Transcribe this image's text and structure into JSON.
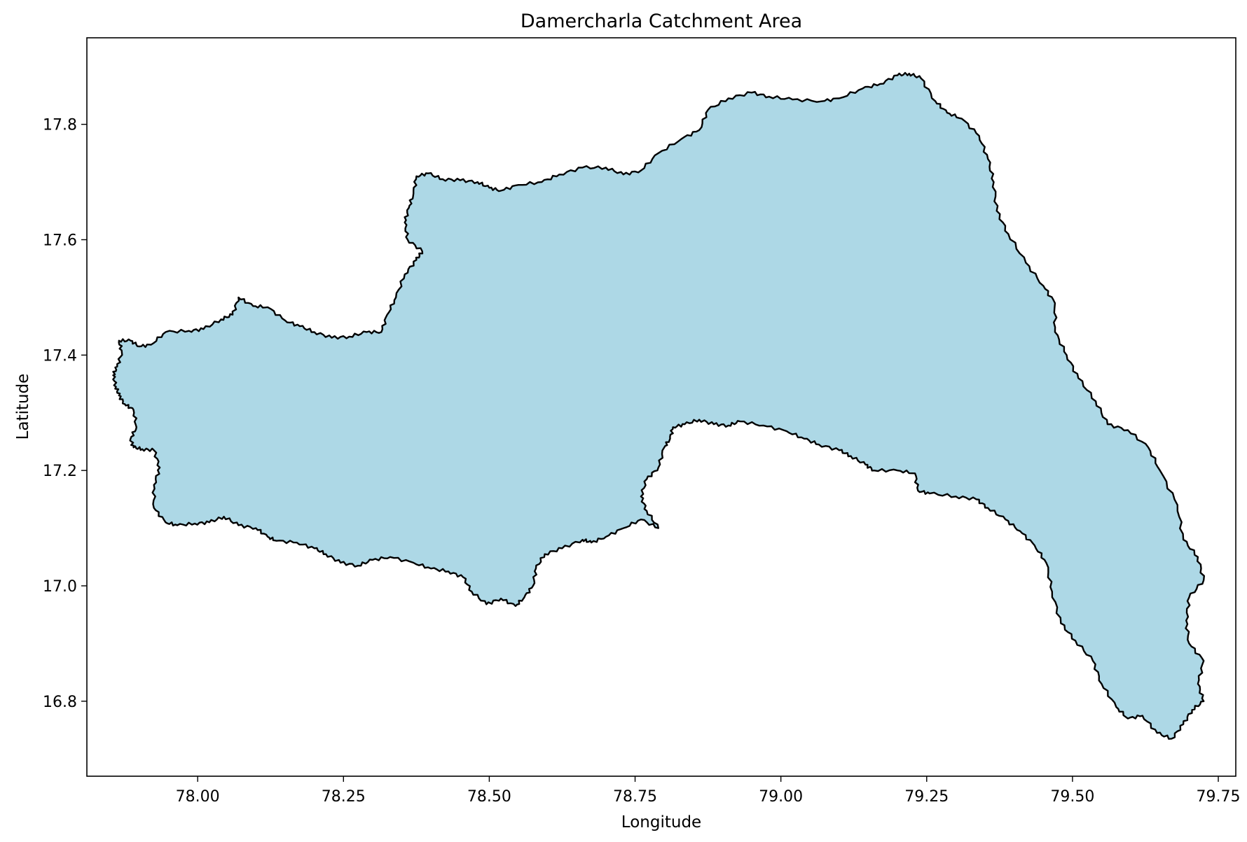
{
  "chart_data": {
    "type": "map",
    "title": "Damercharla Catchment Area",
    "xlabel": "Longitude",
    "ylabel": "Latitude",
    "xlim": [
      77.81,
      79.78
    ],
    "ylim": [
      16.67,
      17.95
    ],
    "xticks": [
      "78.00",
      "78.25",
      "78.50",
      "78.75",
      "79.00",
      "79.25",
      "79.50",
      "79.75"
    ],
    "yticks": [
      "16.8",
      "17.0",
      "17.2",
      "17.4",
      "17.6",
      "17.8"
    ],
    "grid": false,
    "legend": "none",
    "region": {
      "name": "Damercharla catchment",
      "fill_color": "#add8e6",
      "edge_color": "#000000",
      "boundary": [
        [
          77.865,
          17.425
        ],
        [
          77.885,
          17.425
        ],
        [
          77.9,
          17.415
        ],
        [
          77.92,
          17.418
        ],
        [
          77.945,
          17.44
        ],
        [
          77.985,
          17.442
        ],
        [
          78.01,
          17.445
        ],
        [
          78.04,
          17.462
        ],
        [
          78.06,
          17.47
        ],
        [
          78.07,
          17.5
        ],
        [
          78.095,
          17.485
        ],
        [
          78.12,
          17.483
        ],
        [
          78.15,
          17.46
        ],
        [
          78.175,
          17.45
        ],
        [
          78.2,
          17.44
        ],
        [
          78.23,
          17.43
        ],
        [
          78.26,
          17.432
        ],
        [
          78.29,
          17.44
        ],
        [
          78.315,
          17.44
        ],
        [
          78.325,
          17.47
        ],
        [
          78.34,
          17.5
        ],
        [
          78.355,
          17.54
        ],
        [
          78.375,
          17.565
        ],
        [
          78.385,
          17.58
        ],
        [
          78.36,
          17.6
        ],
        [
          78.355,
          17.63
        ],
        [
          78.362,
          17.655
        ],
        [
          78.37,
          17.68
        ],
        [
          78.375,
          17.71
        ],
        [
          78.395,
          17.715
        ],
        [
          78.42,
          17.705
        ],
        [
          78.45,
          17.703
        ],
        [
          78.48,
          17.7
        ],
        [
          78.5,
          17.69
        ],
        [
          78.52,
          17.685
        ],
        [
          78.55,
          17.695
        ],
        [
          78.59,
          17.7
        ],
        [
          78.62,
          17.713
        ],
        [
          78.66,
          17.725
        ],
        [
          78.7,
          17.725
        ],
        [
          78.73,
          17.713
        ],
        [
          78.76,
          17.72
        ],
        [
          78.79,
          17.75
        ],
        [
          78.83,
          17.775
        ],
        [
          78.86,
          17.79
        ],
        [
          78.875,
          17.825
        ],
        [
          78.91,
          17.845
        ],
        [
          78.95,
          17.855
        ],
        [
          78.98,
          17.848
        ],
        [
          79.02,
          17.843
        ],
        [
          79.07,
          17.84
        ],
        [
          79.1,
          17.845
        ],
        [
          79.14,
          17.862
        ],
        [
          79.17,
          17.87
        ],
        [
          79.2,
          17.885
        ],
        [
          79.22,
          17.888
        ],
        [
          79.24,
          17.88
        ],
        [
          79.265,
          17.84
        ],
        [
          79.285,
          17.82
        ],
        [
          79.31,
          17.81
        ],
        [
          79.34,
          17.78
        ],
        [
          79.355,
          17.74
        ],
        [
          79.365,
          17.7
        ],
        [
          79.37,
          17.65
        ],
        [
          79.39,
          17.61
        ],
        [
          79.42,
          17.56
        ],
        [
          79.45,
          17.52
        ],
        [
          79.47,
          17.49
        ],
        [
          79.47,
          17.44
        ],
        [
          79.49,
          17.4
        ],
        [
          79.51,
          17.36
        ],
        [
          79.54,
          17.32
        ],
        [
          79.56,
          17.28
        ],
        [
          79.595,
          17.27
        ],
        [
          79.63,
          17.24
        ],
        [
          79.65,
          17.2
        ],
        [
          79.68,
          17.14
        ],
        [
          79.69,
          17.08
        ],
        [
          79.715,
          17.05
        ],
        [
          79.725,
          17.01
        ],
        [
          79.7,
          16.98
        ],
        [
          79.695,
          16.94
        ],
        [
          79.7,
          16.9
        ],
        [
          79.725,
          16.87
        ],
        [
          79.715,
          16.83
        ],
        [
          79.725,
          16.8
        ],
        [
          79.705,
          16.785
        ],
        [
          79.69,
          16.76
        ],
        [
          79.67,
          16.735
        ],
        [
          79.645,
          16.745
        ],
        [
          79.62,
          16.775
        ],
        [
          79.595,
          16.77
        ],
        [
          79.575,
          16.79
        ],
        [
          79.55,
          16.83
        ],
        [
          79.535,
          16.87
        ],
        [
          79.505,
          16.905
        ],
        [
          79.48,
          16.935
        ],
        [
          79.465,
          16.99
        ],
        [
          79.455,
          17.04
        ],
        [
          79.435,
          17.07
        ],
        [
          79.41,
          17.095
        ],
        [
          79.385,
          17.115
        ],
        [
          79.355,
          17.135
        ],
        [
          79.335,
          17.15
        ],
        [
          79.3,
          17.155
        ],
        [
          79.255,
          17.16
        ],
        [
          79.235,
          17.165
        ],
        [
          79.23,
          17.195
        ],
        [
          79.2,
          17.2
        ],
        [
          79.16,
          17.2
        ],
        [
          79.145,
          17.21
        ],
        [
          79.12,
          17.225
        ],
        [
          79.1,
          17.235
        ],
        [
          79.065,
          17.245
        ],
        [
          79.04,
          17.255
        ],
        [
          79.01,
          17.268
        ],
        [
          78.97,
          17.278
        ],
        [
          78.93,
          17.285
        ],
        [
          78.91,
          17.278
        ],
        [
          78.885,
          17.28
        ],
        [
          78.86,
          17.288
        ],
        [
          78.835,
          17.28
        ],
        [
          78.815,
          17.275
        ],
        [
          78.81,
          17.255
        ],
        [
          78.8,
          17.24
        ],
        [
          78.79,
          17.205
        ],
        [
          78.77,
          17.185
        ],
        [
          78.76,
          17.155
        ],
        [
          78.77,
          17.13
        ],
        [
          78.79,
          17.1
        ],
        [
          78.76,
          17.115
        ],
        [
          78.73,
          17.1
        ],
        [
          78.7,
          17.085
        ],
        [
          78.675,
          17.075
        ],
        [
          78.66,
          17.08
        ],
        [
          78.625,
          17.065
        ],
        [
          78.595,
          17.055
        ],
        [
          78.58,
          17.03
        ],
        [
          78.575,
          17.0
        ],
        [
          78.56,
          16.98
        ],
        [
          78.545,
          16.965
        ],
        [
          78.52,
          16.978
        ],
        [
          78.495,
          16.968
        ],
        [
          78.47,
          16.99
        ],
        [
          78.455,
          17.015
        ],
        [
          78.43,
          17.025
        ],
        [
          78.4,
          17.03
        ],
        [
          78.37,
          17.04
        ],
        [
          78.33,
          17.05
        ],
        [
          78.3,
          17.045
        ],
        [
          78.275,
          17.035
        ],
        [
          78.245,
          17.04
        ],
        [
          78.22,
          17.055
        ],
        [
          78.2,
          17.065
        ],
        [
          78.17,
          17.075
        ],
        [
          78.135,
          17.078
        ],
        [
          78.12,
          17.085
        ],
        [
          78.1,
          17.1
        ],
        [
          78.07,
          17.105
        ],
        [
          78.045,
          17.12
        ],
        [
          78.02,
          17.11
        ],
        [
          77.995,
          17.108
        ],
        [
          77.965,
          17.105
        ],
        [
          77.945,
          17.11
        ],
        [
          77.925,
          17.135
        ],
        [
          77.925,
          17.175
        ],
        [
          77.935,
          17.205
        ],
        [
          77.925,
          17.235
        ],
        [
          77.905,
          17.237
        ],
        [
          77.89,
          17.24
        ],
        [
          77.885,
          17.255
        ],
        [
          77.895,
          17.275
        ],
        [
          77.89,
          17.305
        ],
        [
          77.875,
          17.315
        ],
        [
          77.865,
          17.33
        ],
        [
          77.86,
          17.345
        ],
        [
          77.855,
          17.365
        ],
        [
          77.862,
          17.38
        ],
        [
          77.87,
          17.405
        ]
      ]
    }
  }
}
